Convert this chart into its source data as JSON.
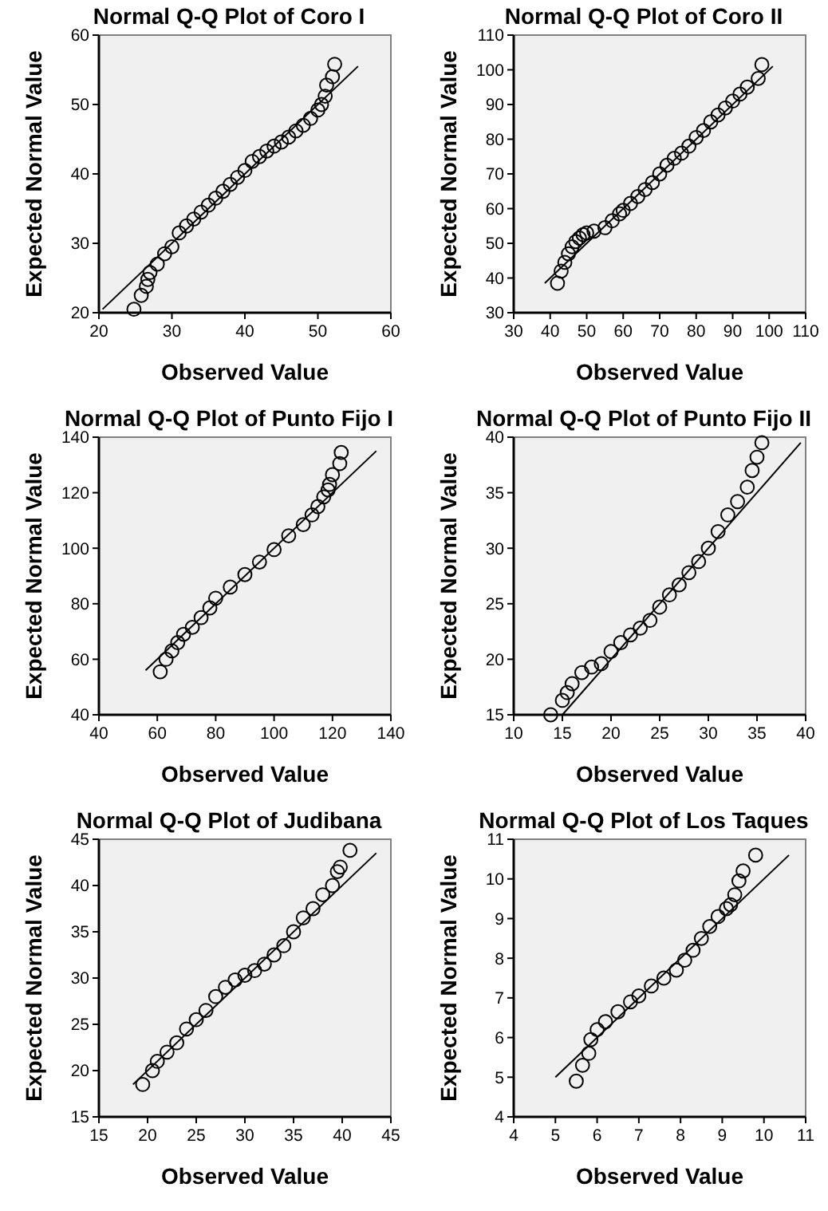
{
  "chart_data": [
    {
      "type": "scatter",
      "title": "Normal Q-Q Plot of Coro I",
      "xlabel": "Observed Value",
      "ylabel": "Expected Normal Value",
      "xlim": [
        20,
        60
      ],
      "xticks": [
        20,
        30,
        40,
        50,
        60
      ],
      "ylim": [
        20,
        60
      ],
      "yticks": [
        20,
        30,
        40,
        50,
        60
      ],
      "marker": "circle",
      "series": [
        {
          "color": "#000000",
          "x": [
            24.8,
            25.8,
            26.5,
            26.7,
            27,
            28,
            29,
            30,
            31,
            32,
            33,
            34,
            35,
            36,
            37,
            38,
            39,
            40,
            41,
            42,
            43,
            44,
            45,
            46,
            47,
            48,
            49,
            50,
            50.5,
            51,
            51.2,
            52,
            52.3
          ],
          "values": [
            20.5,
            22.5,
            23.8,
            24.8,
            25.8,
            27,
            28.5,
            29.5,
            31.5,
            32.5,
            33.5,
            34.5,
            35.5,
            36.5,
            37.5,
            38.5,
            39.5,
            40.5,
            41.8,
            42.5,
            43.3,
            44,
            44.6,
            45.3,
            46.2,
            47,
            48,
            49.2,
            50,
            51.2,
            52.8,
            54,
            55.8
          ]
        },
        {
          "type": "line",
          "marker": "none",
          "color": "#000000",
          "x": [
            20.5,
            55.5
          ],
          "values": [
            20.5,
            55.5
          ]
        }
      ]
    },
    {
      "type": "scatter",
      "title": "Normal Q-Q Plot of Coro II",
      "xlabel": "Observed Value",
      "ylabel": "Expected Normal Value",
      "xlim": [
        30,
        110
      ],
      "xticks": [
        30,
        40,
        50,
        60,
        70,
        80,
        90,
        100,
        110
      ],
      "ylim": [
        30,
        110
      ],
      "yticks": [
        30,
        40,
        50,
        60,
        70,
        80,
        90,
        100,
        110
      ],
      "marker": "circle",
      "series": [
        {
          "color": "#000000",
          "x": [
            42,
            43,
            44,
            45,
            46,
            47,
            48,
            49,
            50,
            52,
            55,
            57,
            59,
            60,
            62,
            64,
            66,
            68,
            70,
            72,
            74,
            76,
            78,
            80,
            82,
            84,
            86,
            88,
            90,
            92,
            94,
            97,
            98
          ],
          "values": [
            38.5,
            42,
            44.5,
            47,
            49,
            50.5,
            51.5,
            52.5,
            53,
            53.5,
            54.5,
            56.5,
            58.5,
            59.5,
            61.5,
            63.5,
            65.5,
            67.5,
            70,
            72.5,
            74.5,
            76,
            78,
            80.5,
            82.5,
            85,
            87,
            89,
            91,
            93,
            95,
            97.5,
            101.5
          ]
        },
        {
          "type": "line",
          "marker": "none",
          "color": "#000000",
          "x": [
            38.5,
            101
          ],
          "values": [
            38.5,
            101
          ]
        }
      ]
    },
    {
      "type": "scatter",
      "title": "Normal Q-Q Plot of Punto Fijo I",
      "xlabel": "Observed Value",
      "ylabel": "Expected Normal Value",
      "xlim": [
        40,
        140
      ],
      "xticks": [
        40,
        60,
        80,
        100,
        120,
        140
      ],
      "ylim": [
        40,
        140
      ],
      "yticks": [
        40,
        60,
        80,
        100,
        120,
        140
      ],
      "marker": "circle",
      "series": [
        {
          "color": "#000000",
          "x": [
            61,
            63,
            65,
            67,
            69,
            72,
            75,
            78,
            80,
            85,
            90,
            95,
            100,
            105,
            110,
            113,
            115,
            117,
            118.5,
            119,
            120,
            122.5,
            123
          ],
          "values": [
            55.5,
            60,
            63,
            66,
            69,
            71.5,
            75,
            78.5,
            82,
            86,
            90.5,
            95,
            99.5,
            104.5,
            108.5,
            112,
            115,
            118.5,
            121,
            123,
            126.5,
            130.5,
            134.5
          ]
        },
        {
          "type": "line",
          "marker": "none",
          "color": "#000000",
          "x": [
            56,
            135
          ],
          "values": [
            56,
            135
          ]
        }
      ]
    },
    {
      "type": "scatter",
      "title": "Normal Q-Q Plot of Punto Fijo II",
      "xlabel": "Observed Value",
      "ylabel": "Expected Normal Value",
      "xlim": [
        10,
        40
      ],
      "xticks": [
        10,
        15,
        20,
        25,
        30,
        35,
        40
      ],
      "ylim": [
        15,
        40
      ],
      "yticks": [
        15,
        20,
        25,
        30,
        35,
        40
      ],
      "marker": "circle",
      "series": [
        {
          "color": "#000000",
          "x": [
            13.8,
            15,
            15.5,
            16,
            17,
            18,
            19,
            20,
            21,
            22,
            23,
            24,
            25,
            26,
            27,
            28,
            29,
            30,
            31,
            32,
            33,
            34,
            34.5,
            35,
            35.5
          ],
          "values": [
            15,
            16.3,
            17,
            17.8,
            18.8,
            19.3,
            19.6,
            20.7,
            21.5,
            22.2,
            22.8,
            23.5,
            24.7,
            25.8,
            26.7,
            27.8,
            28.8,
            30,
            31.5,
            33,
            34.2,
            35.5,
            37,
            38.2,
            39.5
          ]
        },
        {
          "type": "line",
          "marker": "none",
          "color": "#000000",
          "x": [
            15,
            39.5
          ],
          "values": [
            15,
            39.5
          ]
        }
      ]
    },
    {
      "type": "scatter",
      "title": "Normal Q-Q Plot of Judibana",
      "xlabel": "Observed Value",
      "ylabel": "Expected Normal Value",
      "xlim": [
        15,
        45
      ],
      "xticks": [
        15,
        20,
        25,
        30,
        35,
        40,
        45
      ],
      "ylim": [
        15,
        45
      ],
      "yticks": [
        15,
        20,
        25,
        30,
        35,
        40,
        45
      ],
      "marker": "circle",
      "series": [
        {
          "color": "#000000",
          "x": [
            19.5,
            20.5,
            21,
            22,
            23,
            24,
            25,
            26,
            27,
            28,
            29,
            30,
            31,
            32,
            33,
            34,
            35,
            36,
            37,
            38,
            39,
            39.5,
            39.8,
            40.8
          ],
          "values": [
            18.5,
            20,
            21,
            22,
            23,
            24.5,
            25.5,
            26.5,
            28,
            29,
            29.8,
            30.3,
            30.8,
            31.5,
            32.5,
            33.5,
            35,
            36.5,
            37.5,
            39,
            40,
            41.5,
            42,
            43.8
          ]
        },
        {
          "type": "line",
          "marker": "none",
          "color": "#000000",
          "x": [
            18.5,
            43.5
          ],
          "values": [
            18.5,
            43.5
          ]
        }
      ]
    },
    {
      "type": "scatter",
      "title": "Normal Q-Q Plot of Los Taques",
      "xlabel": "Observed Value",
      "ylabel": "Expected Normal Value",
      "xlim": [
        4,
        11
      ],
      "xticks": [
        4,
        5,
        6,
        7,
        8,
        9,
        10,
        11
      ],
      "ylim": [
        4,
        11
      ],
      "yticks": [
        4,
        5,
        6,
        7,
        8,
        9,
        10,
        11
      ],
      "marker": "circle",
      "series": [
        {
          "color": "#000000",
          "x": [
            5.5,
            5.65,
            5.8,
            5.85,
            6,
            6.2,
            6.5,
            6.8,
            7,
            7.3,
            7.6,
            7.9,
            8.1,
            8.3,
            8.5,
            8.7,
            8.9,
            9.1,
            9.2,
            9.3,
            9.4,
            9.5,
            9.8
          ],
          "values": [
            4.9,
            5.3,
            5.6,
            5.95,
            6.2,
            6.4,
            6.65,
            6.9,
            7.05,
            7.3,
            7.5,
            7.7,
            7.95,
            8.2,
            8.5,
            8.8,
            9.05,
            9.25,
            9.35,
            9.6,
            9.95,
            10.2,
            10.6
          ]
        },
        {
          "type": "line",
          "marker": "none",
          "color": "#000000",
          "x": [
            5,
            10.6
          ],
          "values": [
            5,
            10.6
          ]
        }
      ]
    }
  ]
}
